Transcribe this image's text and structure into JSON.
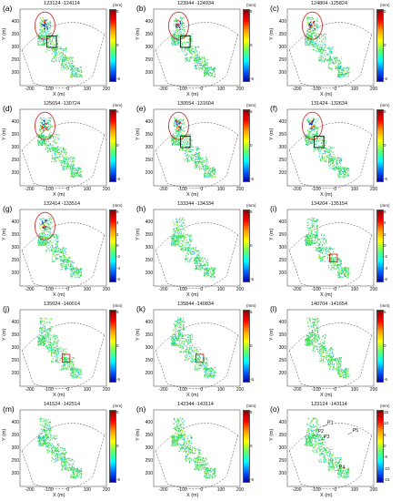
{
  "chart_data": {
    "type": "scatter",
    "xlabel": "X (m)",
    "ylabel": "Y (m)",
    "xlim": [
      -250,
      200
    ],
    "ylim": [
      150,
      450
    ],
    "x_ticks": [
      "-200",
      "-100",
      "0",
      "100",
      "200"
    ],
    "y_ticks": [
      "400",
      "350",
      "300",
      "250",
      "200"
    ],
    "colorbar_unit": "(mm)",
    "colors": [
      "#8b0000",
      "#ff0000",
      "#ff9900",
      "#ffff00",
      "#66ff66",
      "#00ffff",
      "#0066ff",
      "#0000aa"
    ],
    "panels": [
      {
        "label": "(a)",
        "title": "123124 -124114",
        "cbar_ticks": [
          "5",
          "0",
          "-5"
        ],
        "ellipse": true,
        "box": "black"
      },
      {
        "label": "(b)",
        "title": "123944 -124934",
        "cbar_ticks": [
          "5",
          "0",
          "-5"
        ],
        "ellipse": true,
        "box": "black"
      },
      {
        "label": "(c)",
        "title": "124804 -125824",
        "cbar_ticks": [
          "5",
          "0",
          "-5"
        ],
        "ellipse": true,
        "box": ""
      },
      {
        "label": "(d)",
        "title": "125654 -130724",
        "cbar_ticks": [
          "5",
          "0",
          "-5"
        ],
        "ellipse": true,
        "box": ""
      },
      {
        "label": "(e)",
        "title": "130554 -131604",
        "cbar_ticks": [
          "5",
          "0",
          "-5"
        ],
        "ellipse": true,
        "box": "black"
      },
      {
        "label": "(f)",
        "title": "131424 -132634",
        "cbar_ticks": [
          "5",
          "0",
          "-5"
        ],
        "ellipse": true,
        "box": "black"
      },
      {
        "label": "(g)",
        "title": "132414 -133514",
        "cbar_ticks": [
          "6",
          "4",
          "2",
          "0",
          "-2",
          "-4",
          "-6"
        ],
        "ellipse": true,
        "box": ""
      },
      {
        "label": "(h)",
        "title": "133344 -134334",
        "cbar_ticks": [
          "5",
          "0",
          "-5"
        ],
        "ellipse": false,
        "box": ""
      },
      {
        "label": "(i)",
        "title": "134204 -135154",
        "cbar_ticks": [
          "6",
          "4",
          "2",
          "0",
          "-2",
          "-4",
          "-6"
        ],
        "ellipse": false,
        "box": "red"
      },
      {
        "label": "(j)",
        "title": "135024 -140014",
        "cbar_ticks": [
          "5",
          "0",
          "-5"
        ],
        "ellipse": false,
        "box": "red"
      },
      {
        "label": "(k)",
        "title": "135844 -140834",
        "cbar_ticks": [
          "5",
          "0",
          "-5"
        ],
        "ellipse": false,
        "box": "red"
      },
      {
        "label": "(l)",
        "title": "140704 -141654",
        "cbar_ticks": [
          "5",
          "0",
          "-5"
        ],
        "ellipse": false,
        "box": ""
      },
      {
        "label": "(m)",
        "title": "141524 -142514",
        "cbar_ticks": [
          "5",
          "0",
          "-5"
        ],
        "ellipse": false,
        "box": ""
      },
      {
        "label": "(n)",
        "title": "142344 -143114",
        "cbar_ticks": [
          "5",
          "0",
          "-5"
        ],
        "ellipse": false,
        "box": ""
      },
      {
        "label": "(o)",
        "title": "123124 -143114",
        "cbar_ticks": [
          "15",
          "10",
          "5",
          "0",
          "-5",
          "-10",
          "-15"
        ],
        "ellipse": false,
        "box": "",
        "points": [
          "P1",
          "P2",
          "P3",
          "P4",
          "P5"
        ]
      }
    ]
  }
}
